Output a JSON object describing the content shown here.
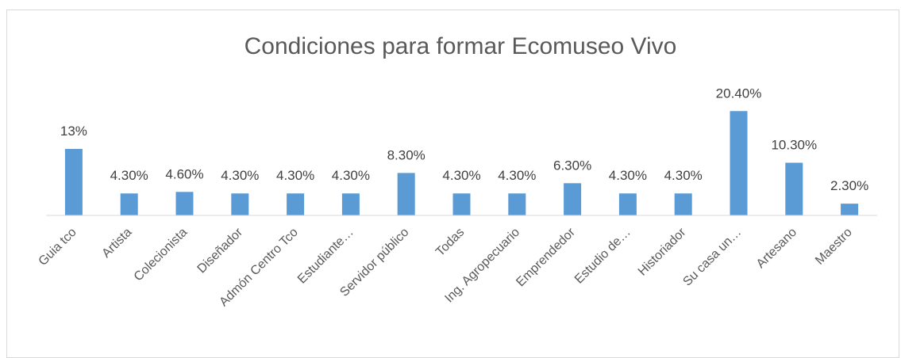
{
  "chart_data": {
    "type": "bar",
    "title": "Condiciones para formar Ecomuseo Vivo",
    "categories": [
      "Guia tco",
      "Artista",
      "Colecionista",
      "Diseñador",
      "Admón Centro Tco",
      "Estudiante…",
      "Servidor público",
      "Todas",
      "Ing. Agropecuario",
      "Emprendedor",
      "Estudio de…",
      "Historiador",
      "Su casa un…",
      "Artesano",
      "Maestro"
    ],
    "values": [
      13,
      4.3,
      4.6,
      4.3,
      4.3,
      4.3,
      8.3,
      4.3,
      4.3,
      6.3,
      4.3,
      4.3,
      20.4,
      10.3,
      2.3
    ],
    "value_labels": [
      "13%",
      "4.30%",
      "4.60%",
      "4.30%",
      "4.30%",
      "4.30%",
      "8.30%",
      "4.30%",
      "4.30%",
      "6.30%",
      "4.30%",
      "4.30%",
      "20.40%",
      "10.30%",
      "2.30%"
    ],
    "color": "#5b9bd5",
    "ylim": [
      0,
      24
    ]
  }
}
